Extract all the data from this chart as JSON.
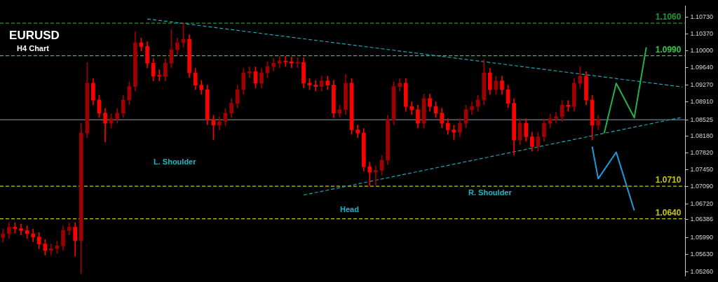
{
  "chart_data": {
    "type": "candlestick",
    "title": "EURUSD",
    "subtitle": "H4 Chart",
    "colors": [
      "#a00000",
      "#a00000",
      "#ff0000",
      "#ff0000",
      "#ff0000",
      "#ff0000",
      "#ff0000",
      "#ff0000",
      "#a00000",
      "#a00000",
      "#a00000",
      "#a00000",
      "#ff0000",
      "#a00000",
      "#a00000",
      "#ff0000",
      "#ff0000",
      "#ff0000",
      "#a00000",
      "#a00000",
      "#a00000",
      "#a00000",
      "#a00000",
      "#ff0000",
      "#ff0000",
      "#ff0000",
      "#ff0000",
      "#a00000",
      "#a00000",
      "#a00000",
      "#a00000",
      "#ff0000",
      "#ff0000",
      "#ff0000",
      "#ff0000",
      "#ff0000",
      "#a00000",
      "#a00000",
      "#a00000",
      "#a00000",
      "#a00000",
      "#a00000",
      "#ff0000",
      "#a00000",
      "#a00000",
      "#a00000",
      "#a00000",
      "#ff0000",
      "#ff0000",
      "#a00000",
      "#ff0000",
      "#ff0000",
      "#ff0000",
      "#a00000",
      "#ff0000",
      "#ff0000",
      "#a00000",
      "#a00000",
      "#ff0000",
      "#ff0000",
      "#ff0000",
      "#ff0000",
      "#a00000",
      "#a00000",
      "#a00000",
      "#a00000",
      "#a00000",
      "#ff0000",
      "#ff0000",
      "#ff0000",
      "#a00000",
      "#ff0000",
      "#ff0000",
      "#ff0000",
      "#ff0000",
      "#ff0000",
      "#a00000",
      "#a00000",
      "#a00000",
      "#a00000",
      "#a00000",
      "#ff0000",
      "#a00000",
      "#ff0000",
      "#ff0000",
      "#ff0000",
      "#a00000",
      "#ff0000",
      "#ff0000",
      "#a00000",
      "#a00000",
      "#a00000",
      "#a00000",
      "#a00000",
      "#ff0000",
      "#a00000",
      "#a00000",
      "#ff0000",
      "#ff0000",
      "#a00000",
      null,
      null,
      null,
      null,
      null,
      null,
      null,
      null,
      null,
      null,
      null,
      null,
      null,
      null
    ],
    "categories": [
      null,
      null,
      null,
      null,
      null,
      null,
      null,
      null,
      null,
      null,
      null,
      null,
      null,
      null,
      null,
      null,
      null,
      null,
      null,
      null,
      null,
      null,
      null,
      null,
      null,
      null,
      null,
      null,
      null,
      null,
      null,
      null,
      null,
      null,
      null,
      null,
      null,
      null,
      null,
      null,
      null,
      null,
      null,
      null,
      null,
      null,
      null,
      null,
      null,
      null,
      null,
      null,
      null,
      null,
      null,
      null,
      null,
      null,
      null,
      null,
      null,
      null,
      null,
      null,
      null,
      null,
      null,
      null,
      null,
      null,
      null,
      null,
      null,
      null,
      null,
      null,
      null,
      null,
      null,
      null,
      null,
      null,
      null,
      null,
      null,
      null,
      null,
      null,
      null,
      null,
      null,
      null,
      null,
      null,
      null,
      null,
      null,
      null,
      null,
      null,
      null,
      null,
      null,
      null,
      null,
      null,
      null,
      null,
      null,
      null,
      null,
      null,
      null,
      null
    ],
    "ohlc": [
      [
        1.06,
        1.0618,
        1.059,
        1.0608
      ],
      [
        1.0608,
        1.0632,
        1.0598,
        1.0622
      ],
      [
        1.0622,
        1.0632,
        1.0609,
        1.0619
      ],
      [
        1.0619,
        1.0629,
        1.0605,
        1.0615
      ],
      [
        1.0615,
        1.0625,
        1.0598,
        1.0608
      ],
      [
        1.0608,
        1.0618,
        1.0591,
        1.0601
      ],
      [
        1.0601,
        1.0611,
        1.0576,
        1.0586
      ],
      [
        1.0586,
        1.0596,
        1.0562,
        1.0572
      ],
      [
        1.0572,
        1.0586,
        1.0562,
        1.0576
      ],
      [
        1.0576,
        1.0592,
        1.0566,
        1.0582
      ],
      [
        1.0582,
        1.0625,
        1.0572,
        1.0615
      ],
      [
        1.0615,
        1.0632,
        1.0605,
        1.0622
      ],
      [
        1.0622,
        1.0632,
        1.056,
        1.0593
      ],
      [
        1.0593,
        1.0845,
        1.0522,
        1.0824
      ],
      [
        1.0824,
        1.0975,
        1.0814,
        1.0931
      ],
      [
        1.0931,
        1.0941,
        1.0885,
        1.0895
      ],
      [
        1.0895,
        1.0905,
        1.0857,
        1.0867
      ],
      [
        1.0867,
        1.0877,
        1.0805,
        1.0845
      ],
      [
        1.0845,
        1.0865,
        1.0835,
        1.0855
      ],
      [
        1.0855,
        1.0877,
        1.0845,
        1.0867
      ],
      [
        1.0867,
        1.0905,
        1.0857,
        1.0895
      ],
      [
        1.0895,
        1.0934,
        1.0885,
        1.0924
      ],
      [
        1.0924,
        1.1042,
        1.0914,
        1.1018
      ],
      [
        1.1018,
        1.1028,
        1.1,
        1.101
      ],
      [
        1.101,
        1.102,
        1.0964,
        1.0974
      ],
      [
        1.0974,
        1.0984,
        1.0936,
        1.0946
      ],
      [
        1.0946,
        1.096,
        1.0936,
        1.0946
      ],
      [
        1.0946,
        1.0984,
        1.0936,
        1.0974
      ],
      [
        1.0974,
        1.1046,
        1.0964,
        1.1003
      ],
      [
        1.1003,
        1.1028,
        1.0993,
        1.1018
      ],
      [
        1.1018,
        1.1061,
        1.1008,
        1.1025
      ],
      [
        1.1025,
        1.1035,
        1.0943,
        1.0953
      ],
      [
        1.0953,
        1.0963,
        1.0917,
        1.0927
      ],
      [
        1.0927,
        1.0937,
        1.0907,
        1.0917
      ],
      [
        1.0917,
        1.0927,
        1.0842,
        1.0852
      ],
      [
        1.0852,
        1.0862,
        1.081,
        1.0841
      ],
      [
        1.0841,
        1.0859,
        1.0831,
        1.0849
      ],
      [
        1.0849,
        1.0877,
        1.0839,
        1.0867
      ],
      [
        1.0867,
        1.0898,
        1.0857,
        1.0888
      ],
      [
        1.0888,
        1.0927,
        1.0878,
        1.0917
      ],
      [
        1.0917,
        1.0963,
        1.0907,
        1.0953
      ],
      [
        1.0953,
        1.0966,
        1.0943,
        1.0956
      ],
      [
        1.0956,
        1.0966,
        1.0921,
        1.0931
      ],
      [
        1.0931,
        1.0963,
        1.0921,
        1.0953
      ],
      [
        1.0953,
        1.0977,
        1.0943,
        1.0967
      ],
      [
        1.0967,
        1.0984,
        1.0957,
        1.0974
      ],
      [
        1.0974,
        1.0989,
        1.0964,
        1.0979
      ],
      [
        1.0979,
        1.0989,
        1.0967,
        1.0977
      ],
      [
        1.0977,
        1.0987,
        1.0964,
        1.0974
      ],
      [
        1.0974,
        1.0986,
        1.0964,
        1.0976
      ],
      [
        1.0976,
        1.0986,
        1.0921,
        1.0931
      ],
      [
        1.0931,
        1.0941,
        1.0917,
        1.0927
      ],
      [
        1.0927,
        1.0937,
        1.0914,
        1.0924
      ],
      [
        1.0924,
        1.0946,
        1.0914,
        1.0936
      ],
      [
        1.0936,
        1.0946,
        1.0917,
        1.0927
      ],
      [
        1.0927,
        1.0937,
        1.0857,
        1.0867
      ],
      [
        1.0867,
        1.0884,
        1.0857,
        1.0874
      ],
      [
        1.0874,
        1.095,
        1.0864,
        1.0931
      ],
      [
        1.0931,
        1.0941,
        1.0821,
        1.0831
      ],
      [
        1.0831,
        1.0841,
        1.0814,
        1.0824
      ],
      [
        1.0824,
        1.0834,
        1.0742,
        1.0752
      ],
      [
        1.0752,
        1.0762,
        1.0711,
        1.074
      ],
      [
        1.074,
        1.0754,
        1.0712,
        1.0744
      ],
      [
        1.0744,
        1.0776,
        1.0734,
        1.0766
      ],
      [
        1.0766,
        1.0862,
        1.0756,
        1.0852
      ],
      [
        1.0852,
        1.0934,
        1.0842,
        1.0924
      ],
      [
        1.0924,
        1.0941,
        1.0914,
        1.0931
      ],
      [
        1.0931,
        1.0941,
        1.0871,
        1.0881
      ],
      [
        1.0881,
        1.0891,
        1.0864,
        1.0874
      ],
      [
        1.0874,
        1.0884,
        1.0835,
        1.0845
      ],
      [
        1.0845,
        1.0908,
        1.0835,
        1.0898
      ],
      [
        1.0898,
        1.0908,
        1.0871,
        1.0881
      ],
      [
        1.0881,
        1.0891,
        1.0857,
        1.0867
      ],
      [
        1.0867,
        1.0877,
        1.0835,
        1.0845
      ],
      [
        1.0845,
        1.0855,
        1.0821,
        1.0831
      ],
      [
        1.0831,
        1.0841,
        1.081,
        1.0826
      ],
      [
        1.0826,
        1.0855,
        1.0816,
        1.0845
      ],
      [
        1.0845,
        1.0884,
        1.0835,
        1.0874
      ],
      [
        1.0874,
        1.0891,
        1.0864,
        1.0881
      ],
      [
        1.0881,
        1.0905,
        1.0871,
        1.0895
      ],
      [
        1.0895,
        1.0982,
        1.0885,
        1.0953
      ],
      [
        1.0953,
        1.0963,
        1.0907,
        1.0917
      ],
      [
        1.0917,
        1.0946,
        1.0907,
        1.0936
      ],
      [
        1.0936,
        1.0946,
        1.0907,
        1.0917
      ],
      [
        1.0917,
        1.0927,
        1.0878,
        1.0888
      ],
      [
        1.0888,
        1.0898,
        1.0777,
        1.0809
      ],
      [
        1.0809,
        1.0855,
        1.0799,
        1.0845
      ],
      [
        1.0845,
        1.0855,
        1.0806,
        1.0816
      ],
      [
        1.0816,
        1.0826,
        1.0785,
        1.0795
      ],
      [
        1.0795,
        1.0826,
        1.0785,
        1.0816
      ],
      [
        1.0816,
        1.0855,
        1.0806,
        1.0845
      ],
      [
        1.0845,
        1.0865,
        1.0835,
        1.0855
      ],
      [
        1.0855,
        1.0869,
        1.0845,
        1.0859
      ],
      [
        1.0859,
        1.0894,
        1.0849,
        1.0884
      ],
      [
        1.0884,
        1.0894,
        1.0871,
        1.0881
      ],
      [
        1.0881,
        1.0941,
        1.0871,
        1.0931
      ],
      [
        1.0931,
        1.0967,
        1.0921,
        1.0946
      ],
      [
        1.0946,
        1.0956,
        1.0885,
        1.0895
      ],
      [
        1.0895,
        1.0905,
        1.0809,
        1.0841
      ],
      [
        1.0841,
        1.0862,
        1.0831,
        1.0852
      ],
      null,
      null,
      null,
      null,
      null,
      null,
      null,
      null,
      null,
      null,
      null,
      null,
      null,
      null
    ],
    "series": [
      {
        "type": "line",
        "line_style": "dashed",
        "color": "#1fa5b5",
        "values": [
          null,
          null,
          null,
          null,
          null,
          null,
          null,
          null,
          null,
          null,
          null,
          null,
          null,
          null,
          null,
          null,
          null,
          null,
          null,
          null,
          null,
          null,
          null,
          null,
          1.1069,
          null,
          null,
          null,
          null,
          null,
          null,
          null,
          null,
          null,
          null,
          null,
          null,
          null,
          null,
          null,
          null,
          null,
          null,
          null,
          null,
          null,
          null,
          null,
          null,
          null,
          null,
          null,
          null,
          null,
          null,
          null,
          null,
          null,
          null,
          null,
          null,
          null,
          null,
          null,
          null,
          null,
          null,
          null,
          null,
          null,
          null,
          null,
          null,
          null,
          null,
          null,
          null,
          null,
          null,
          null,
          null,
          null,
          null,
          null,
          null,
          null,
          null,
          null,
          null,
          null,
          null,
          null,
          null,
          null,
          null,
          null,
          null,
          null,
          null,
          null,
          null,
          null,
          null,
          null,
          null,
          null,
          null,
          null,
          null,
          null,
          null,
          null,
          null,
          1.0923
        ]
      },
      {
        "type": "line",
        "line_style": "dashed",
        "color": "#1fa5b5",
        "values": [
          null,
          null,
          null,
          null,
          null,
          null,
          null,
          null,
          null,
          null,
          null,
          null,
          null,
          null,
          null,
          null,
          null,
          null,
          null,
          null,
          null,
          null,
          null,
          null,
          null,
          null,
          null,
          null,
          null,
          null,
          null,
          null,
          null,
          null,
          null,
          null,
          null,
          null,
          null,
          null,
          null,
          null,
          null,
          null,
          null,
          null,
          null,
          null,
          null,
          null,
          1.0691,
          null,
          null,
          null,
          null,
          null,
          null,
          null,
          null,
          null,
          null,
          null,
          null,
          null,
          null,
          null,
          null,
          null,
          null,
          null,
          null,
          null,
          null,
          null,
          null,
          null,
          null,
          null,
          null,
          null,
          null,
          null,
          null,
          null,
          null,
          null,
          null,
          null,
          null,
          null,
          null,
          null,
          null,
          null,
          null,
          null,
          null,
          null,
          null,
          null,
          null,
          null,
          null,
          null,
          null,
          null,
          null,
          null,
          null,
          null,
          null,
          null,
          null,
          1.0858
        ]
      },
      {
        "type": "line",
        "line_style": "solid",
        "color": "#22b24c",
        "values": [
          null,
          null,
          null,
          null,
          null,
          null,
          null,
          null,
          null,
          null,
          null,
          null,
          null,
          null,
          null,
          null,
          null,
          null,
          null,
          null,
          null,
          null,
          null,
          null,
          null,
          null,
          null,
          null,
          null,
          null,
          null,
          null,
          null,
          null,
          null,
          null,
          null,
          null,
          null,
          null,
          null,
          null,
          null,
          null,
          null,
          null,
          null,
          null,
          null,
          null,
          null,
          null,
          null,
          null,
          null,
          null,
          null,
          null,
          null,
          null,
          null,
          null,
          null,
          null,
          null,
          null,
          null,
          null,
          null,
          null,
          null,
          null,
          null,
          null,
          null,
          null,
          null,
          null,
          null,
          null,
          null,
          null,
          null,
          null,
          null,
          null,
          null,
          null,
          null,
          null,
          null,
          null,
          null,
          null,
          null,
          null,
          null,
          null,
          null,
          null,
          1.0824,
          null,
          1.0931,
          null,
          null,
          1.0857,
          null,
          1.1008,
          null,
          null,
          null,
          null,
          null,
          null
        ]
      },
      {
        "type": "line",
        "line_style": "solid",
        "color": "#1e9be0",
        "values": [
          null,
          null,
          null,
          null,
          null,
          null,
          null,
          null,
          null,
          null,
          null,
          null,
          null,
          null,
          null,
          null,
          null,
          null,
          null,
          null,
          null,
          null,
          null,
          null,
          null,
          null,
          null,
          null,
          null,
          null,
          null,
          null,
          null,
          null,
          null,
          null,
          null,
          null,
          null,
          null,
          null,
          null,
          null,
          null,
          null,
          null,
          null,
          null,
          null,
          null,
          null,
          null,
          null,
          null,
          null,
          null,
          null,
          null,
          null,
          null,
          null,
          null,
          null,
          null,
          null,
          null,
          null,
          null,
          null,
          null,
          null,
          null,
          null,
          null,
          null,
          null,
          null,
          null,
          null,
          null,
          null,
          null,
          null,
          null,
          null,
          null,
          null,
          null,
          null,
          null,
          null,
          null,
          null,
          null,
          null,
          null,
          null,
          null,
          1.0795,
          1.0726,
          null,
          null,
          1.0783,
          null,
          null,
          1.0658,
          null,
          null,
          null,
          null,
          null,
          null,
          null,
          null
        ]
      }
    ],
    "ylim": [
      1.0517,
      1.1097
    ],
    "yticks": [
      {
        "value": 1.1073,
        "label": "1.10730"
      },
      {
        "value": 1.1037,
        "label": "1.10370"
      },
      {
        "value": 1.1,
        "label": "1.10000"
      },
      {
        "value": 1.0964,
        "label": "1.09640"
      },
      {
        "value": 1.0927,
        "label": "1.09270"
      },
      {
        "value": 1.0891,
        "label": "1.08910"
      },
      1.08525,
      {
        "value": 1.0818,
        "label": "1.08180"
      },
      {
        "value": 1.0782,
        "label": "1.07820"
      },
      {
        "value": 1.0745,
        "label": "1.07450"
      },
      {
        "value": 1.0709,
        "label": "1.07090"
      },
      {
        "value": 1.0672,
        "label": "1.06720"
      },
      1.06386,
      {
        "value": 1.0599,
        "label": "1.05990"
      },
      {
        "value": 1.0563,
        "label": "1.05630"
      },
      {
        "value": 1.0526,
        "label": "1.05260"
      }
    ],
    "ref_lines": [
      {
        "axis": "y",
        "value": 1.106,
        "label": "1.1060",
        "color": "#1f9a3a",
        "line_style": "dashed"
      },
      {
        "axis": "y",
        "value": 1.099,
        "label": "1.0990",
        "color": "#2ecc40",
        "line_style": "dashed"
      },
      {
        "axis": "y",
        "value": 1.08525,
        "color": "#6f7f8f",
        "line_style": "solid"
      },
      {
        "axis": "y",
        "value": 1.071,
        "label": "1.0710",
        "color": "#c8c800",
        "line_style": "dashed"
      },
      {
        "axis": "y",
        "value": 1.064,
        "label": "1.0640",
        "color": "#c8c800",
        "line_style": "dashed"
      }
    ],
    "annotations": [
      "L. Shoulder",
      "Head",
      "R. Shoulder"
    ],
    "grid": false,
    "legend": false
  }
}
